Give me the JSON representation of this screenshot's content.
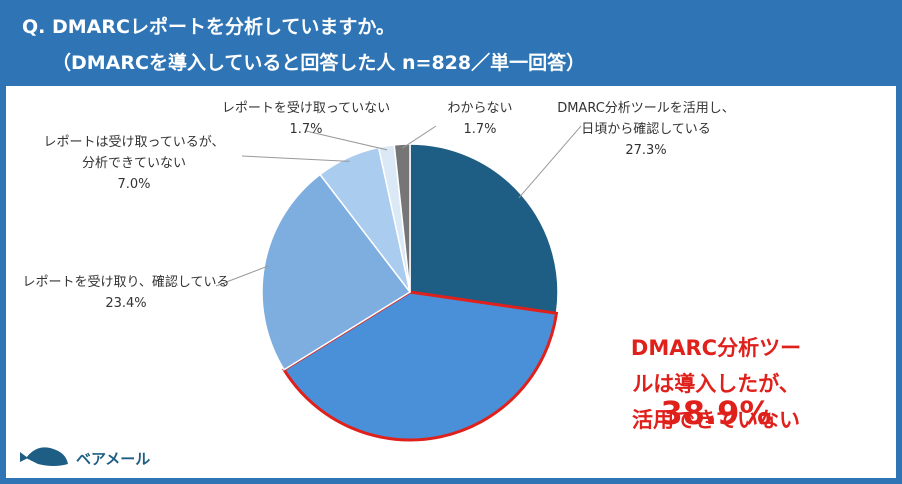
{
  "title": "Q. DMARCレポートを分析していますか。",
  "subtitle": "（DMARCを導入していると回答した人 n=828／単一回答）",
  "logo": "ベアメール",
  "chart_data": {
    "type": "pie",
    "categories": [
      "DMARC分析ツールを活用し、\n日頃から確認している",
      "DMARC分析ツールは導入したが、\n活用できていない",
      "レポートを受け取り、確認している",
      "レポートは受け取っているが、\n分析できていない",
      "レポートを受け取っていない",
      "わからない"
    ],
    "values": [
      27.3,
      38.9,
      23.4,
      7.0,
      1.7,
      1.7
    ],
    "value_labels": [
      "27.3%",
      "38.9%",
      "23.4%",
      "7.0%",
      "1.7%",
      "1.7%"
    ],
    "colors": [
      "#1e5e84",
      "#4a90d9",
      "#7eaee0",
      "#aaccee",
      "#dbe8f6",
      "#767676"
    ],
    "highlight": {
      "index": 1,
      "color": "#e0201b"
    }
  }
}
